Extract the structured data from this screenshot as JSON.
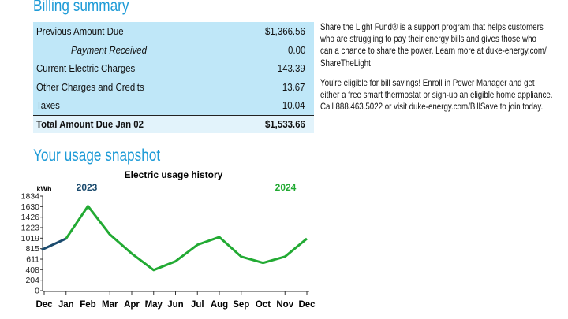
{
  "billing_summary": {
    "title": "Billing summary",
    "rows": [
      {
        "label": "Previous Amount Due",
        "amount": "$1,366.56"
      },
      {
        "label": "Payment Received",
        "amount": "0.00"
      },
      {
        "label": "Current Electric Charges",
        "amount": "143.39"
      },
      {
        "label": "Other Charges and Credits",
        "amount": "13.67"
      },
      {
        "label": "Taxes",
        "amount": "10.04"
      }
    ],
    "total": {
      "label": "Total Amount Due Jan 02",
      "amount": "$1,533.66"
    }
  },
  "messages": [
    [
      "Share the Light Fund® is a support program that helps customers",
      "who are struggling to pay their energy bills and gives those who",
      "can a chance to share the power. Learn more at duke-energy.com/",
      "ShareTheLight"
    ],
    [
      "You're eligible for bill savings! Enroll in Power Manager and get",
      "either a free smart thermostat or sign-up an eligible home appliance.",
      "Call 888.463.5022 or visit duke-energy.com/BillSave to join today."
    ]
  ],
  "usage": {
    "title": "Your usage snapshot"
  },
  "chart_data": {
    "type": "line",
    "title": "Electric usage history",
    "y_label": "kWh",
    "categories": [
      "Dec",
      "Jan",
      "Feb",
      "Mar",
      "Apr",
      "May",
      "Jun",
      "Jul",
      "Aug",
      "Sep",
      "Oct",
      "Nov",
      "Dec"
    ],
    "series": [
      {
        "name": "2023",
        "color": "#1b4b6e",
        "values": [
          800,
          null,
          null,
          null,
          null,
          null,
          null,
          null,
          null,
          null,
          null,
          null,
          null
        ]
      },
      {
        "name": "2024",
        "color": "#22aa33",
        "values": [
          null,
          1010,
          1640,
          1090,
          720,
          400,
          570,
          890,
          1040,
          660,
          540,
          660,
          1010
        ]
      }
    ],
    "ylim": [
      0,
      1834
    ],
    "yticks": [
      0,
      204,
      408,
      611,
      815,
      1019,
      1223,
      1426,
      1630,
      1834
    ]
  }
}
